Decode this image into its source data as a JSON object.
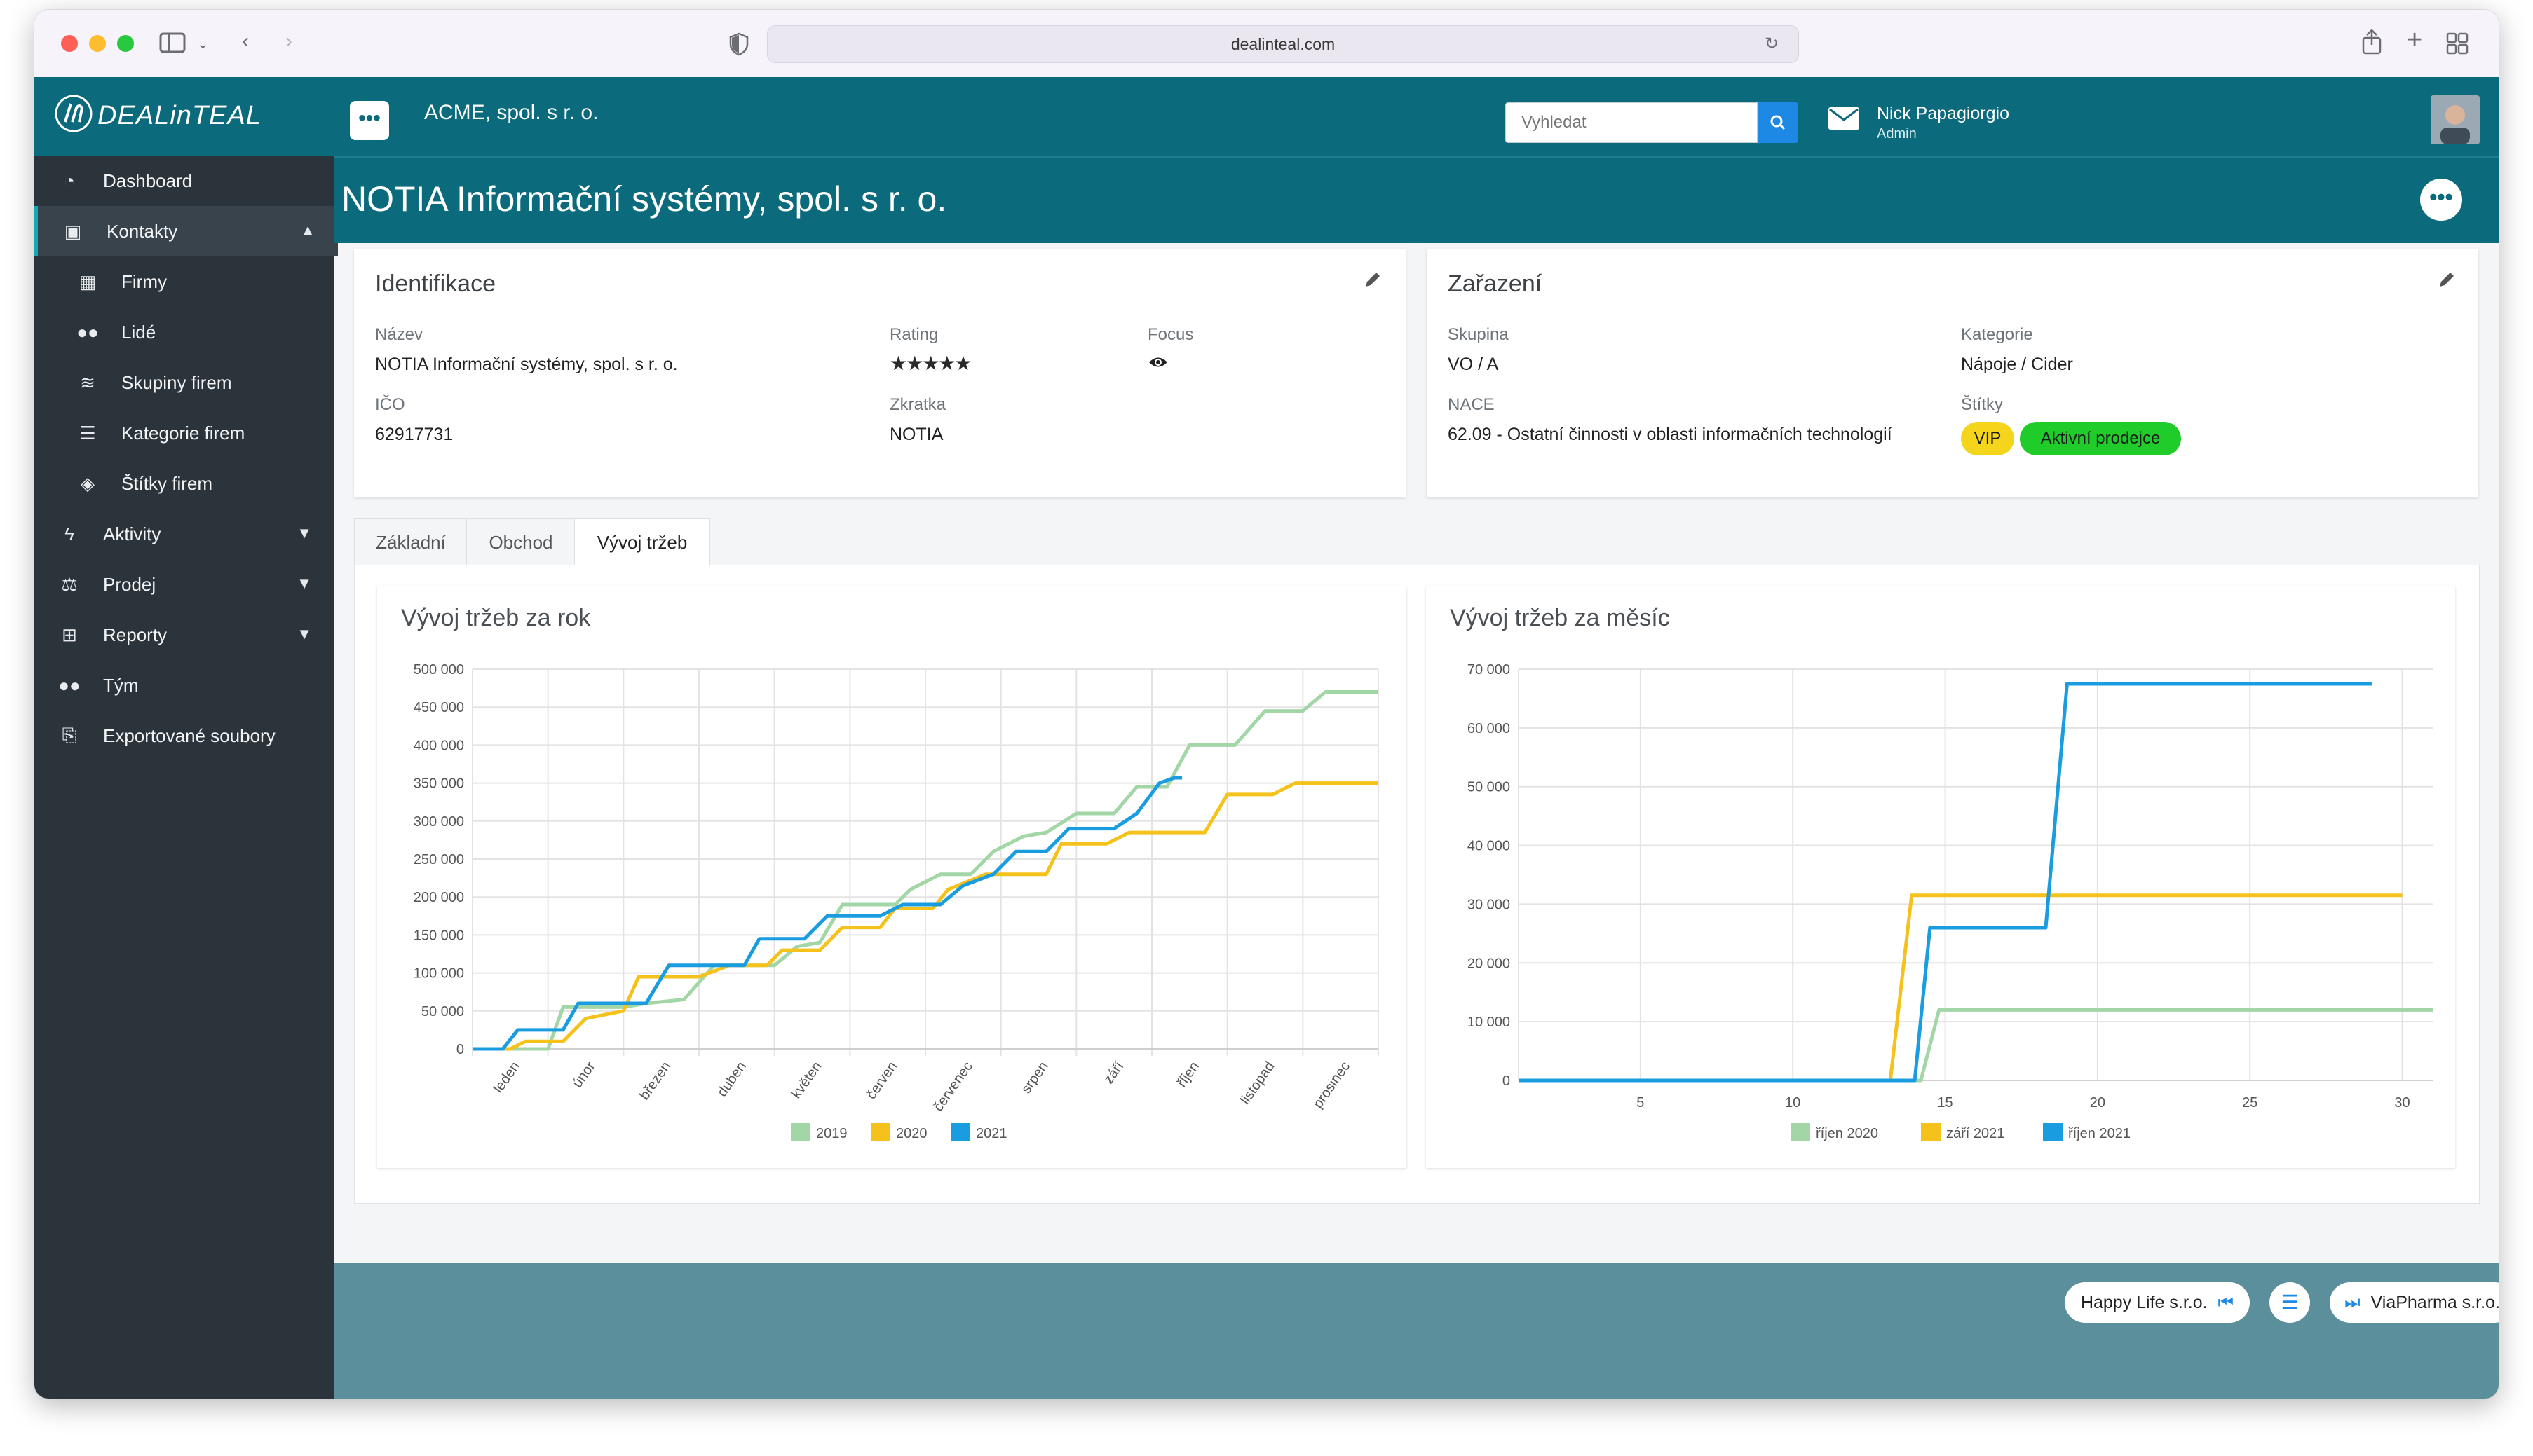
{
  "browser": {
    "url": "dealinteal.com"
  },
  "app": {
    "logo_text": "DEALinTEAL",
    "company": "ACME, spol. s r. o."
  },
  "search": {
    "placeholder": "Vyhledat"
  },
  "user": {
    "name": "Nick Papagiorgio",
    "role": "Admin"
  },
  "sidebar": {
    "items": [
      {
        "label": "Dashboard",
        "icon": "dashboard-icon"
      },
      {
        "label": "Kontakty",
        "icon": "contacts-icon"
      },
      {
        "label": "Firmy",
        "icon": "building-icon"
      },
      {
        "label": "Lidé",
        "icon": "people-icon"
      },
      {
        "label": "Skupiny firem",
        "icon": "layers-icon"
      },
      {
        "label": "Kategorie firem",
        "icon": "list-icon"
      },
      {
        "label": "Štítky firem",
        "icon": "tags-icon"
      },
      {
        "label": "Aktivity",
        "icon": "bolt-icon"
      },
      {
        "label": "Prodej",
        "icon": "scales-icon"
      },
      {
        "label": "Reporty",
        "icon": "table-icon"
      },
      {
        "label": "Tým",
        "icon": "team-icon"
      },
      {
        "label": "Exportované soubory",
        "icon": "export-file-icon"
      }
    ]
  },
  "page": {
    "title": "NOTIA Informační systémy, spol. s r. o."
  },
  "identifikace": {
    "title": "Identifikace",
    "nazev_label": "Název",
    "nazev_value": "NOTIA Informační systémy, spol. s r. o.",
    "rating_label": "Rating",
    "rating_value": 5,
    "focus_label": "Focus",
    "ico_label": "IČO",
    "ico_value": "62917731",
    "zkratka_label": "Zkratka",
    "zkratka_value": "NOTIA"
  },
  "zarazeni": {
    "title": "Zařazení",
    "skupina_label": "Skupina",
    "skupina_value": "VO / A",
    "kategorie_label": "Kategorie",
    "kategorie_value": "Nápoje / Cider",
    "nace_label": "NACE",
    "nace_value": "62.09 - Ostatní činnosti v oblasti informačních technologií",
    "stitky_label": "Štítky",
    "tags": [
      {
        "label": "VIP",
        "color": "#f5d51c"
      },
      {
        "label": "Aktivní prodejce",
        "color": "#1fcc2a"
      }
    ]
  },
  "tabs": [
    {
      "label": "Základní"
    },
    {
      "label": "Obchod"
    },
    {
      "label": "Vývoj tržeb"
    }
  ],
  "colors": {
    "teal": "#0c6a7d",
    "series_green": "#a3d6a7",
    "series_yellow": "#f5c21b",
    "series_blue": "#1a9ce0"
  },
  "chart_data": [
    {
      "type": "line",
      "title": "Vývoj tržeb za rok",
      "categories": [
        "leden",
        "únor",
        "březen",
        "duben",
        "květen",
        "červen",
        "červenec",
        "srpen",
        "září",
        "říjen",
        "listopad",
        "prosinec"
      ],
      "yticks": [
        "0",
        "50 000",
        "100 000",
        "150 000",
        "200 000",
        "250 000",
        "300 000",
        "350 000",
        "400 000",
        "450 000",
        "500 000"
      ],
      "ylim": [
        0,
        500000
      ],
      "xlim": [
        0,
        12
      ],
      "series": [
        {
          "name": "2019",
          "color": "#a3d6a7",
          "points": [
            [
              0,
              0
            ],
            [
              1,
              0
            ],
            [
              1.2,
              55000
            ],
            [
              2,
              55000
            ],
            [
              2.3,
              60000
            ],
            [
              2.8,
              65000
            ],
            [
              3.2,
              110000
            ],
            [
              4,
              110000
            ],
            [
              4.3,
              135000
            ],
            [
              4.6,
              140000
            ],
            [
              4.9,
              190000
            ],
            [
              5.6,
              190000
            ],
            [
              5.8,
              210000
            ],
            [
              6.2,
              230000
            ],
            [
              6.6,
              230000
            ],
            [
              6.9,
              260000
            ],
            [
              7.3,
              280000
            ],
            [
              7.6,
              285000
            ],
            [
              8,
              310000
            ],
            [
              8.5,
              310000
            ],
            [
              8.8,
              345000
            ],
            [
              9.2,
              345000
            ],
            [
              9.5,
              400000
            ],
            [
              10.1,
              400000
            ],
            [
              10.5,
              445000
            ],
            [
              11,
              445000
            ],
            [
              11.3,
              470000
            ],
            [
              12,
              470000
            ]
          ]
        },
        {
          "name": "2020",
          "color": "#f5c21b",
          "points": [
            [
              0,
              0
            ],
            [
              0.5,
              0
            ],
            [
              0.7,
              10000
            ],
            [
              1.2,
              10000
            ],
            [
              1.5,
              40000
            ],
            [
              2,
              50000
            ],
            [
              2.2,
              95000
            ],
            [
              3,
              95000
            ],
            [
              3.4,
              110000
            ],
            [
              3.9,
              110000
            ],
            [
              4.1,
              130000
            ],
            [
              4.6,
              130000
            ],
            [
              4.9,
              160000
            ],
            [
              5.4,
              160000
            ],
            [
              5.6,
              185000
            ],
            [
              6.1,
              185000
            ],
            [
              6.3,
              210000
            ],
            [
              6.8,
              230000
            ],
            [
              7.6,
              230000
            ],
            [
              7.8,
              270000
            ],
            [
              8.4,
              270000
            ],
            [
              8.7,
              285000
            ],
            [
              9.7,
              285000
            ],
            [
              10,
              335000
            ],
            [
              10.6,
              335000
            ],
            [
              10.9,
              350000
            ],
            [
              12,
              350000
            ]
          ]
        },
        {
          "name": "2021",
          "color": "#1a9ce0",
          "points": [
            [
              0,
              0
            ],
            [
              0.4,
              0
            ],
            [
              0.6,
              25000
            ],
            [
              1.2,
              25000
            ],
            [
              1.4,
              60000
            ],
            [
              2.3,
              60000
            ],
            [
              2.6,
              110000
            ],
            [
              3.6,
              110000
            ],
            [
              3.8,
              145000
            ],
            [
              4.4,
              145000
            ],
            [
              4.7,
              175000
            ],
            [
              5.4,
              175000
            ],
            [
              5.7,
              190000
            ],
            [
              6.2,
              190000
            ],
            [
              6.5,
              215000
            ],
            [
              6.9,
              230000
            ],
            [
              7.2,
              260000
            ],
            [
              7.6,
              260000
            ],
            [
              7.9,
              290000
            ],
            [
              8.5,
              290000
            ],
            [
              8.8,
              310000
            ],
            [
              9.1,
              350000
            ],
            [
              9.3,
              357000
            ],
            [
              9.4,
              357000
            ]
          ]
        }
      ]
    },
    {
      "type": "line",
      "title": "Vývoj tržeb za měsíc",
      "xticks": [
        5,
        10,
        15,
        20,
        25,
        30
      ],
      "yticks": [
        "0",
        "10 000",
        "20 000",
        "30 000",
        "40 000",
        "50 000",
        "60 000",
        "70 000"
      ],
      "xlim": [
        1,
        31
      ],
      "ylim": [
        0,
        70000
      ],
      "series": [
        {
          "name": "říjen 2020",
          "color": "#a3d6a7",
          "points": [
            [
              1,
              0
            ],
            [
              14.2,
              0
            ],
            [
              14.8,
              12000
            ],
            [
              31,
              12000
            ]
          ]
        },
        {
          "name": "září 2021",
          "color": "#f5c21b",
          "points": [
            [
              1,
              0
            ],
            [
              13.2,
              0
            ],
            [
              13.9,
              31500
            ],
            [
              30,
              31500
            ]
          ]
        },
        {
          "name": "říjen 2021",
          "color": "#1a9ce0",
          "points": [
            [
              1,
              0
            ],
            [
              14,
              0
            ],
            [
              14.5,
              26000
            ],
            [
              18.3,
              26000
            ],
            [
              19,
              67500
            ],
            [
              29,
              67500
            ]
          ]
        }
      ]
    }
  ],
  "footer": {
    "prev_label": "Happy Life s.r.o.",
    "next_label": "ViaPharma s.r.o."
  }
}
